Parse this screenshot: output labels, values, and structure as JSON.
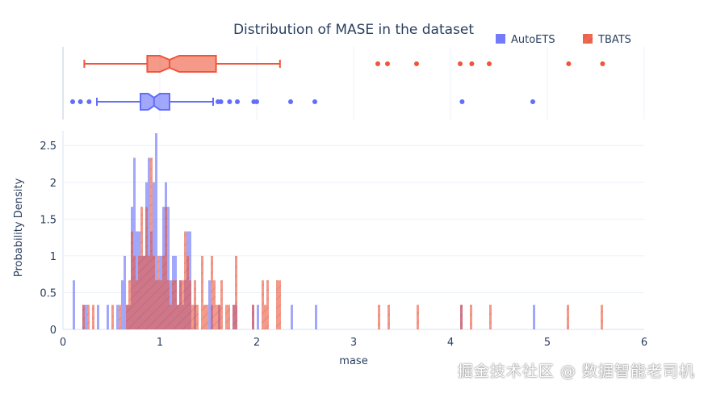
{
  "chart_data": {
    "type": "histogram",
    "title": "Distribution of MASE in the dataset",
    "xlabel": "mase",
    "ylabel": "Probability Density",
    "xlim": [
      0,
      6
    ],
    "ylim": [
      0,
      2.7
    ],
    "xticks": [
      "0",
      "1",
      "2",
      "3",
      "4",
      "5",
      "6"
    ],
    "yticks": [
      "0",
      "0.5",
      "1",
      "1.5",
      "2",
      "2.5"
    ],
    "bin_width": 0.025,
    "legend_position": "top-right",
    "histnorm": "probability density",
    "marginal": "box",
    "grid": true,
    "series": [
      {
        "name": "AutoETS",
        "color": "#636efa",
        "pattern": "none",
        "bins": [
          [
            0.1,
            0.667
          ],
          [
            0.2,
            0.333
          ],
          [
            0.225,
            0.333
          ],
          [
            0.35,
            0.333
          ],
          [
            0.45,
            0.333
          ],
          [
            0.55,
            0.333
          ],
          [
            0.6,
            0.667
          ],
          [
            0.625,
            1.0
          ],
          [
            0.65,
            0.333
          ],
          [
            0.675,
            0.333
          ],
          [
            0.7,
            1.667
          ],
          [
            0.725,
            2.333
          ],
          [
            0.75,
            1.333
          ],
          [
            0.775,
            1.333
          ],
          [
            0.8,
            1.0
          ],
          [
            0.825,
            1.0
          ],
          [
            0.85,
            2.0
          ],
          [
            0.875,
            2.333
          ],
          [
            0.9,
            1.333
          ],
          [
            0.925,
            2.0
          ],
          [
            0.95,
            2.667
          ],
          [
            0.975,
            0.667
          ],
          [
            1.0,
            1.0
          ],
          [
            1.025,
            1.667
          ],
          [
            1.05,
            2.0
          ],
          [
            1.075,
            1.667
          ],
          [
            1.1,
            0.667
          ],
          [
            1.125,
            1.0
          ],
          [
            1.15,
            1.0
          ],
          [
            1.175,
            0.333
          ],
          [
            1.2,
            0.667
          ],
          [
            1.225,
            0.333
          ],
          [
            1.25,
            0.667
          ],
          [
            1.275,
            1.333
          ],
          [
            1.3,
            1.333
          ],
          [
            1.35,
            0.333
          ],
          [
            1.5,
            0.667
          ],
          [
            1.525,
            0.333
          ],
          [
            1.6,
            0.333
          ],
          [
            1.75,
            0.333
          ],
          [
            1.775,
            0.333
          ],
          [
            1.95,
            0.333
          ],
          [
            2.0,
            0.333
          ],
          [
            2.35,
            0.333
          ],
          [
            2.6,
            0.333
          ],
          [
            4.1,
            0.333
          ],
          [
            4.85,
            0.333
          ]
        ],
        "box": {
          "lower_fence": 0.35,
          "q1": 0.8,
          "median": 0.94,
          "q3": 1.1,
          "upper_fence": 1.55,
          "notch": [
            0.88,
            1.0
          ],
          "outliers": [
            0.1,
            0.18,
            0.27,
            1.6,
            1.63,
            1.72,
            1.8,
            1.97,
            2.0,
            2.35,
            2.6,
            4.12,
            4.85
          ]
        }
      },
      {
        "name": "TBATS",
        "color": "#EF553B",
        "pattern": "/",
        "bins": [
          [
            0.2,
            0.333
          ],
          [
            0.25,
            0.333
          ],
          [
            0.3,
            0.333
          ],
          [
            0.5,
            0.333
          ],
          [
            0.575,
            0.333
          ],
          [
            0.65,
            0.333
          ],
          [
            0.675,
            0.667
          ],
          [
            0.7,
            1.333
          ],
          [
            0.725,
            1.0
          ],
          [
            0.75,
            0.667
          ],
          [
            0.775,
            1.0
          ],
          [
            0.8,
            1.667
          ],
          [
            0.825,
            1.0
          ],
          [
            0.85,
            1.667
          ],
          [
            0.875,
            1.0
          ],
          [
            0.9,
            2.333
          ],
          [
            0.925,
            1.0
          ],
          [
            0.95,
            0.667
          ],
          [
            0.975,
            1.0
          ],
          [
            1.0,
            0.667
          ],
          [
            1.025,
            1.0
          ],
          [
            1.05,
            1.667
          ],
          [
            1.075,
            0.667
          ],
          [
            1.1,
            0.333
          ],
          [
            1.125,
            0.667
          ],
          [
            1.15,
            0.667
          ],
          [
            1.175,
            0.333
          ],
          [
            1.2,
            0.667
          ],
          [
            1.225,
            0.667
          ],
          [
            1.25,
            1.333
          ],
          [
            1.275,
            1.0
          ],
          [
            1.3,
            0.667
          ],
          [
            1.325,
            0.333
          ],
          [
            1.35,
            0.667
          ],
          [
            1.375,
            0.333
          ],
          [
            1.425,
            1.0
          ],
          [
            1.45,
            0.333
          ],
          [
            1.475,
            0.333
          ],
          [
            1.525,
            1.0
          ],
          [
            1.55,
            0.667
          ],
          [
            1.575,
            0.333
          ],
          [
            1.6,
            0.333
          ],
          [
            1.625,
            0.667
          ],
          [
            1.675,
            0.333
          ],
          [
            1.7,
            0.333
          ],
          [
            1.75,
            0.333
          ],
          [
            1.775,
            1.0
          ],
          [
            1.95,
            0.333
          ],
          [
            2.05,
            0.667
          ],
          [
            2.075,
            0.333
          ],
          [
            2.1,
            0.667
          ],
          [
            2.2,
            0.667
          ],
          [
            2.225,
            0.667
          ],
          [
            3.25,
            0.333
          ],
          [
            3.35,
            0.333
          ],
          [
            3.65,
            0.333
          ],
          [
            4.1,
            0.333
          ],
          [
            4.2,
            0.333
          ],
          [
            4.4,
            0.333
          ],
          [
            5.2,
            0.333
          ],
          [
            5.55,
            0.333
          ]
        ],
        "box": {
          "lower_fence": 0.22,
          "q1": 0.87,
          "median": 1.1,
          "q3": 1.58,
          "upper_fence": 2.24,
          "notch": [
            1.0,
            1.2
          ],
          "outliers": [
            3.25,
            3.35,
            3.65,
            4.1,
            4.22,
            4.4,
            5.22,
            5.57
          ]
        }
      }
    ]
  },
  "watermark": "掘金技术社区 @ 数据智能老司机"
}
